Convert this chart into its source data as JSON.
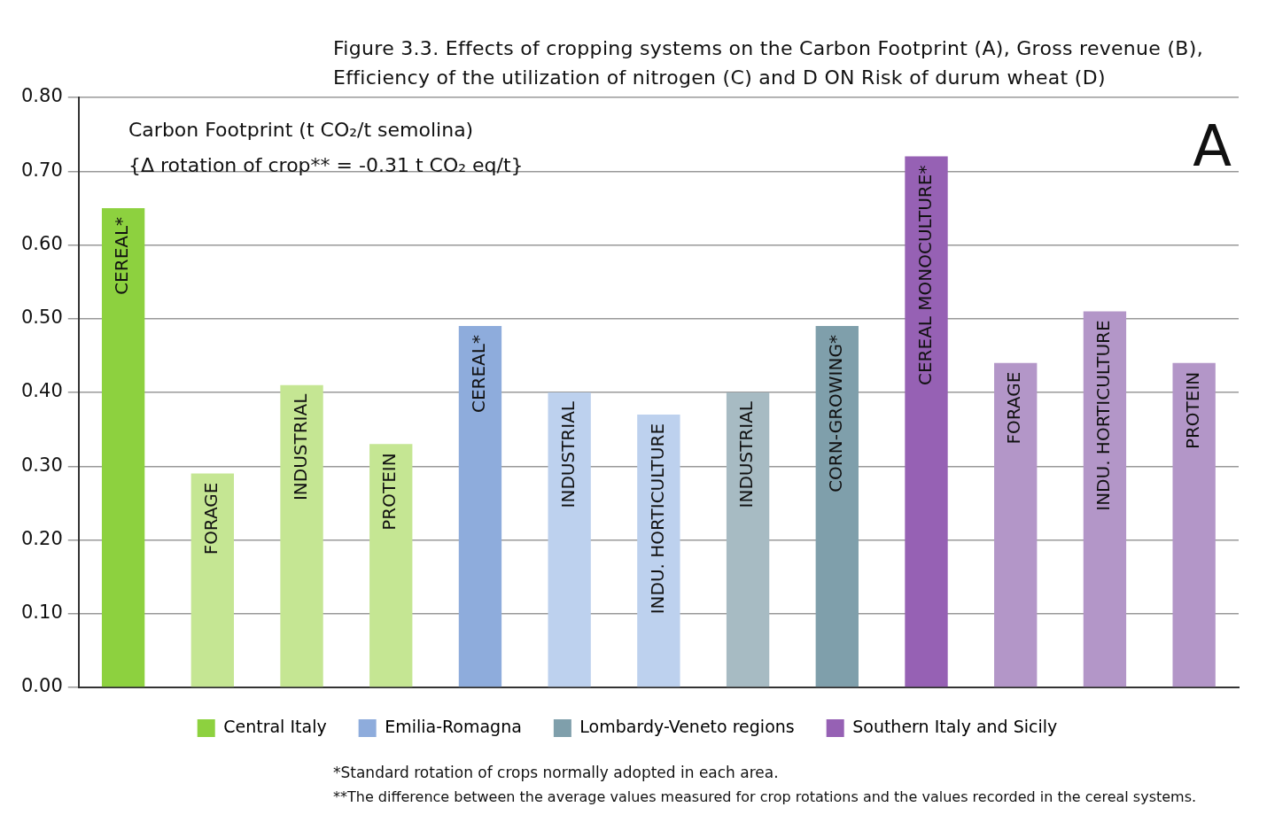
{
  "chart_data": {
    "type": "bar",
    "title": "Figure 3.3. Effects of cropping systems on the Carbon Footprint (A), Gross revenue (B), Efficiency of the utilization of nitrogen (C) and D ON Risk of durum wheat (D)",
    "categories": [
      "CEREAL*",
      "FORAGE",
      "INDUSTRIAL",
      "PROTEIN",
      "CEREAL*",
      "INDUSTRIAL",
      "INDU. HORTICULTURE",
      "INDUSTRIAL",
      "CORN-GROWING*",
      "CEREAL MONOCULTURE*",
      "FORAGE",
      "INDU. HORTICULTURE",
      "PROTEIN"
    ],
    "series": [
      {
        "name": "Central Italy",
        "color": "#8dd13f",
        "colors": [
          "#8dd13f",
          "#c5e693",
          "#c5e693",
          "#c5e693",
          null,
          null,
          null,
          null,
          null,
          null,
          null,
          null,
          null
        ],
        "values": [
          0.65,
          0.29,
          0.41,
          0.33,
          null,
          null,
          null,
          null,
          null,
          null,
          null,
          null,
          null
        ]
      },
      {
        "name": "Emilia-Romagna",
        "color": "#8eacdc",
        "colors": [
          null,
          null,
          null,
          null,
          "#8eacdc",
          "#bdd1ee",
          "#bdd1ee",
          null,
          null,
          null,
          null,
          null,
          null
        ],
        "values": [
          null,
          null,
          null,
          null,
          0.49,
          0.4,
          0.37,
          null,
          null,
          null,
          null,
          null,
          null
        ]
      },
      {
        "name": "Lombardy-Veneto regions",
        "color": "#7f9fab",
        "colors": [
          null,
          null,
          null,
          null,
          null,
          null,
          null,
          "#a7bbc3",
          "#7f9fab",
          null,
          null,
          null,
          null
        ],
        "values": [
          null,
          null,
          null,
          null,
          null,
          null,
          null,
          0.4,
          0.49,
          null,
          null,
          null,
          null
        ]
      },
      {
        "name": "Southern Italy and Sicily",
        "color": "#9661b4",
        "colors": [
          null,
          null,
          null,
          null,
          null,
          null,
          null,
          null,
          null,
          "#9661b4",
          "#b396c8",
          "#b396c8",
          "#b396c8"
        ],
        "values": [
          null,
          null,
          null,
          null,
          null,
          null,
          null,
          null,
          null,
          0.72,
          0.44,
          0.51,
          0.44
        ]
      }
    ],
    "ylim": [
      0,
      0.8
    ],
    "yticks": [
      {
        "value": 0,
        "label": "0.00"
      },
      {
        "value": 0.1,
        "label": "0.10"
      },
      {
        "value": 0.2,
        "label": "0.20"
      },
      {
        "value": 0.3,
        "label": "0.30"
      },
      {
        "value": 0.4,
        "label": "0.40"
      },
      {
        "value": 0.5,
        "label": "0.50"
      },
      {
        "value": 0.6,
        "label": "0.60"
      },
      {
        "value": 0.7,
        "label": "0.70"
      },
      {
        "value": 0.8,
        "label": "0.80"
      }
    ],
    "tick_labels": "y",
    "grid": "y",
    "legend": "bottom",
    "annotations": [
      "Carbon Footprint (t CO₂/t semolina)",
      "{Δ rotation of crop** = -0.31 t CO₂ eq/t}",
      "A",
      "*Standard rotation of crops normally adopted in each area.",
      "**The difference between the average values measured for crop rotations and the values recorded in the cereal systems."
    ]
  }
}
